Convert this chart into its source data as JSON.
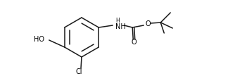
{
  "background": "#ffffff",
  "line_color": "#1a1a1a",
  "line_width": 1.1,
  "font_size": 7.0,
  "figsize": [
    3.34,
    1.08
  ],
  "dpi": 100,
  "labels": {
    "Cl": "Cl",
    "HO": "HO",
    "NH": "NH",
    "H": "H",
    "O1": "O",
    "O2": "O"
  }
}
